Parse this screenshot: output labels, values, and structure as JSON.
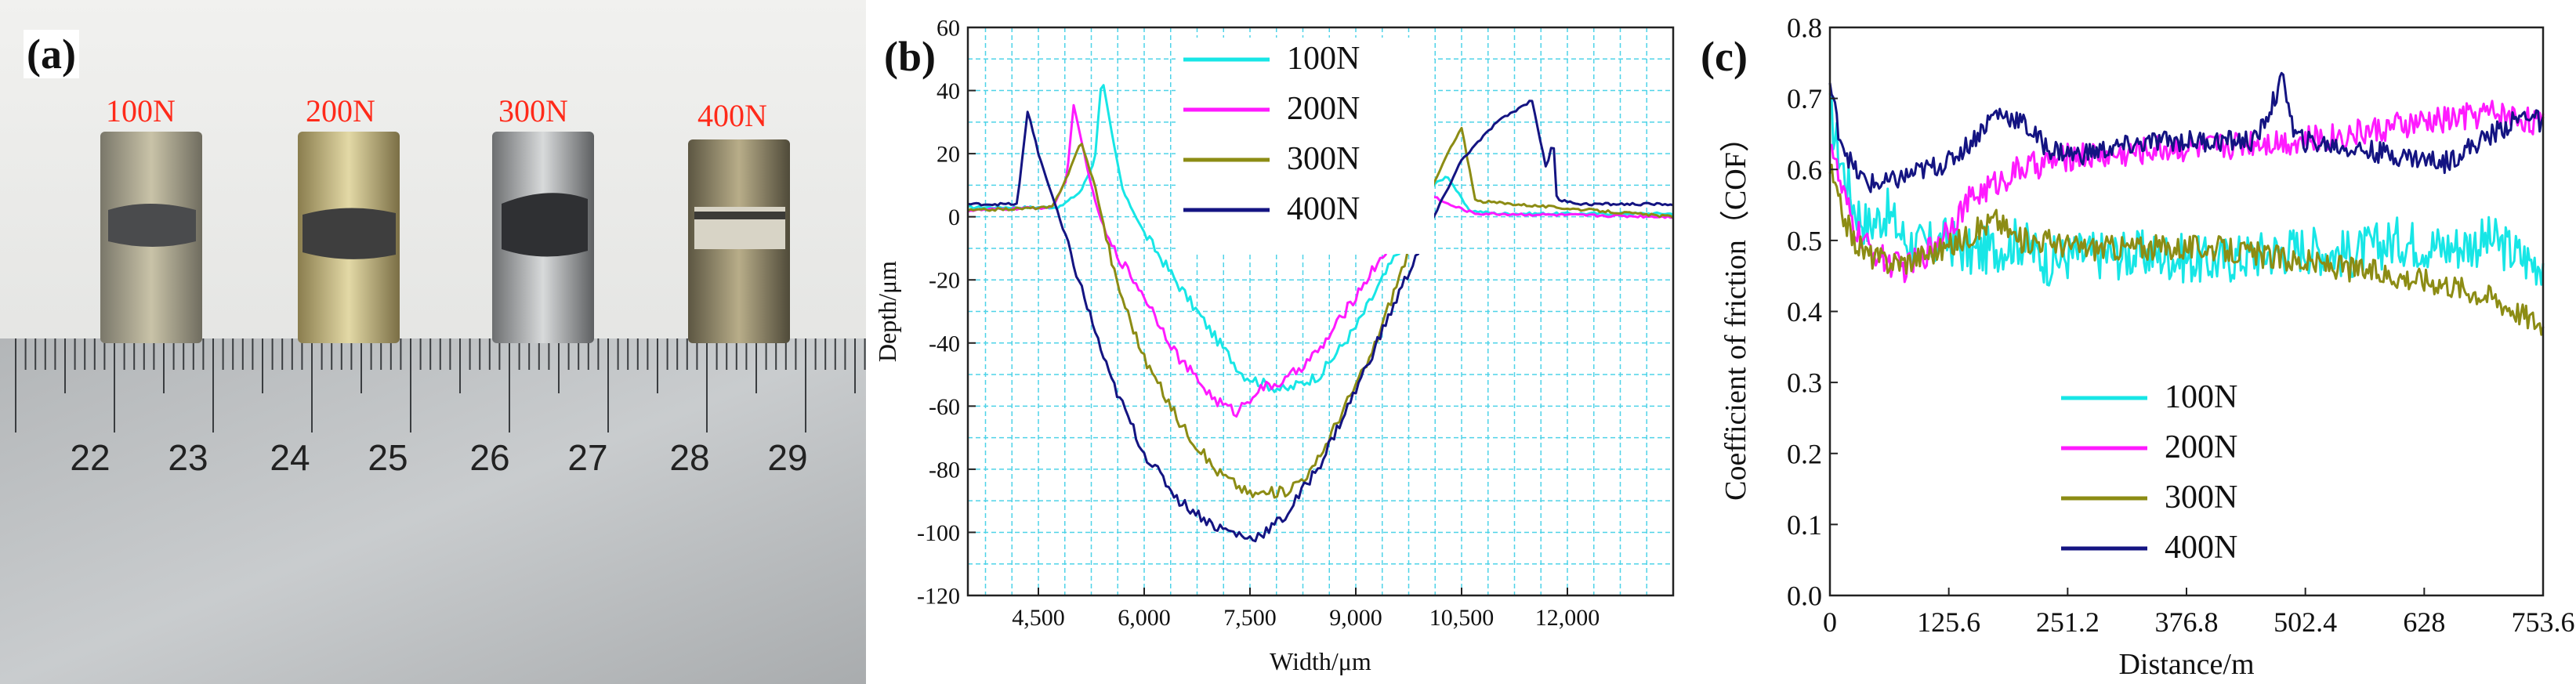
{
  "photo": {
    "label": "(a)",
    "loads": [
      "100N",
      "200N",
      "300N",
      "400N"
    ],
    "ruler_numbers": [
      "22",
      "23",
      "24",
      "25",
      "26",
      "27",
      "28",
      "29"
    ],
    "load_label_color": "#ff2a1a"
  },
  "chart_data": [
    {
      "type": "line",
      "panel_label": "(b)",
      "title": "",
      "xlabel": "Width/μm",
      "ylabel": "Depth/μm",
      "xlim": [
        3500,
        13500
      ],
      "ylim": [
        -120,
        60
      ],
      "x_ticks": [
        4500,
        6000,
        7500,
        9000,
        10500,
        12000
      ],
      "x_tick_labels": [
        "4,500",
        "6,000",
        "7,500",
        "9,000",
        "10,500",
        "12,000"
      ],
      "y_ticks": [
        -120,
        -100,
        -80,
        -60,
        -40,
        -20,
        0,
        20,
        40,
        60
      ],
      "y_tick_labels": [
        "-120",
        "-100",
        "-80",
        "-60",
        "-40",
        "-20",
        "0",
        "20",
        "40",
        "60"
      ],
      "grid": true,
      "legend_position": "top-center",
      "series": [
        {
          "name": "100N",
          "color": "#17e6e6",
          "x": [
            3500,
            4800,
            5100,
            5300,
            5400,
            5550,
            5700,
            6000,
            6500,
            7000,
            7400,
            7700,
            8000,
            8500,
            9000,
            9500,
            9900,
            10100,
            10300,
            10600,
            11000,
            13500
          ],
          "y": [
            3,
            3,
            8,
            18,
            45,
            25,
            8,
            -5,
            -22,
            -38,
            -50,
            -53,
            -55,
            -50,
            -35,
            -15,
            2,
            10,
            13,
            2,
            1,
            1
          ]
        },
        {
          "name": "200N",
          "color": "#ff1aff",
          "x": [
            3500,
            4700,
            4900,
            5000,
            5150,
            5300,
            5500,
            6000,
            6500,
            7000,
            7300,
            7600,
            8000,
            8500,
            9000,
            9500,
            9800,
            10000,
            10300,
            10700,
            13500
          ],
          "y": [
            2,
            3,
            12,
            35,
            20,
            5,
            -8,
            -25,
            -45,
            -58,
            -62,
            -55,
            -52,
            -42,
            -25,
            -8,
            6,
            8,
            4,
            1,
            0
          ]
        },
        {
          "name": "300N",
          "color": "#8c8c14",
          "x": [
            3500,
            4700,
            4950,
            5100,
            5300,
            5600,
            6000,
            6500,
            7000,
            7500,
            8000,
            8400,
            8800,
            9200,
            9600,
            10000,
            10300,
            10500,
            10700,
            13500
          ],
          "y": [
            2,
            3,
            15,
            24,
            10,
            -20,
            -45,
            -65,
            -80,
            -88,
            -87,
            -80,
            -62,
            -45,
            -20,
            5,
            20,
            28,
            5,
            0
          ]
        },
        {
          "name": "400N",
          "color": "#141482",
          "x": [
            3500,
            4200,
            4350,
            4500,
            4750,
            5000,
            5500,
            6000,
            6500,
            7000,
            7500,
            7700,
            8000,
            8500,
            9000,
            9500,
            10000,
            10500,
            11000,
            11500,
            11700,
            11800,
            11850,
            11900,
            12000,
            12200,
            13500
          ],
          "y": [
            4,
            4,
            34,
            20,
            3,
            -15,
            -50,
            -75,
            -90,
            -98,
            -102,
            -100,
            -95,
            -78,
            -55,
            -30,
            -5,
            18,
            30,
            37,
            15,
            25,
            5,
            5,
            5,
            4,
            4
          ]
        }
      ]
    },
    {
      "type": "line",
      "panel_label": "(c)",
      "title": "",
      "xlabel": "Distance/m",
      "ylabel": "Coefficient of friction（COF）",
      "xlim": [
        0,
        753.6
      ],
      "ylim": [
        0.0,
        0.8
      ],
      "x_ticks": [
        0,
        125.6,
        251.2,
        376.8,
        502.4,
        628,
        753.6
      ],
      "x_tick_labels": [
        "0",
        "125.6",
        "251.2",
        "376.8",
        "502.4",
        "628",
        "753.6"
      ],
      "y_ticks": [
        0.0,
        0.1,
        0.2,
        0.3,
        0.4,
        0.5,
        0.6,
        0.7,
        0.8
      ],
      "y_tick_labels": [
        "0.0",
        "0.1",
        "0.2",
        "0.3",
        "0.4",
        "0.5",
        "0.6",
        "0.7",
        "0.8"
      ],
      "grid": false,
      "legend_position": "lower-left",
      "series": [
        {
          "name": "100N",
          "color": "#17e6e6",
          "x": [
            0,
            10,
            25,
            40,
            60,
            80,
            100,
            125,
            150,
            175,
            200,
            230,
            260,
            300,
            350,
            400,
            450,
            500,
            550,
            600,
            650,
            700,
            740,
            753.6
          ],
          "y": [
            0.68,
            0.62,
            0.55,
            0.52,
            0.54,
            0.5,
            0.49,
            0.5,
            0.48,
            0.49,
            0.5,
            0.47,
            0.48,
            0.48,
            0.48,
            0.47,
            0.48,
            0.49,
            0.48,
            0.5,
            0.49,
            0.5,
            0.47,
            0.47
          ],
          "noise": 0.035
        },
        {
          "name": "200N",
          "color": "#ff1aff",
          "x": [
            0,
            10,
            25,
            40,
            60,
            80,
            100,
            125,
            150,
            175,
            200,
            230,
            260,
            300,
            350,
            400,
            450,
            500,
            550,
            600,
            650,
            700,
            740,
            753.6
          ],
          "y": [
            0.65,
            0.58,
            0.52,
            0.49,
            0.47,
            0.46,
            0.48,
            0.52,
            0.56,
            0.58,
            0.6,
            0.61,
            0.62,
            0.62,
            0.63,
            0.63,
            0.64,
            0.64,
            0.65,
            0.66,
            0.67,
            0.68,
            0.67,
            0.66
          ],
          "noise": 0.02
        },
        {
          "name": "300N",
          "color": "#8c8c14",
          "x": [
            0,
            10,
            25,
            40,
            60,
            80,
            100,
            125,
            150,
            175,
            200,
            230,
            260,
            300,
            350,
            400,
            450,
            500,
            550,
            600,
            650,
            700,
            740,
            753.6
          ],
          "y": [
            0.6,
            0.55,
            0.5,
            0.48,
            0.47,
            0.47,
            0.48,
            0.49,
            0.51,
            0.53,
            0.5,
            0.5,
            0.49,
            0.49,
            0.49,
            0.49,
            0.48,
            0.47,
            0.46,
            0.45,
            0.44,
            0.42,
            0.39,
            0.38
          ],
          "noise": 0.018
        },
        {
          "name": "400N",
          "color": "#141482",
          "x": [
            0,
            10,
            25,
            40,
            60,
            80,
            100,
            125,
            150,
            175,
            200,
            230,
            260,
            300,
            350,
            400,
            450,
            480,
            490,
            500,
            550,
            600,
            650,
            700,
            740,
            753.6
          ],
          "y": [
            0.72,
            0.65,
            0.6,
            0.58,
            0.58,
            0.59,
            0.6,
            0.61,
            0.64,
            0.68,
            0.67,
            0.63,
            0.62,
            0.63,
            0.64,
            0.64,
            0.64,
            0.73,
            0.65,
            0.64,
            0.63,
            0.62,
            0.61,
            0.65,
            0.68,
            0.66
          ],
          "noise": 0.015
        }
      ]
    }
  ]
}
